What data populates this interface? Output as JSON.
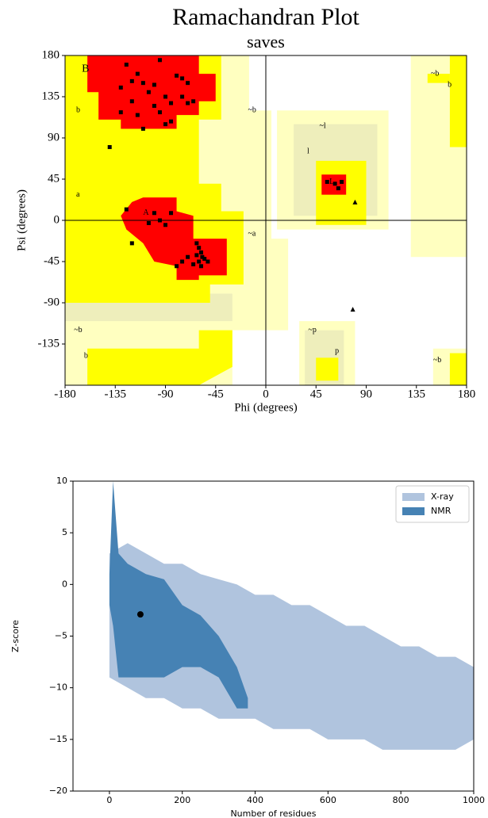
{
  "chart_data": [
    {
      "type": "scatter",
      "title": "Ramachandran Plot",
      "subtitle": "saves",
      "x_label": "Phi (degrees)",
      "y_label": "Psi (degrees)",
      "xlim": [
        -180,
        180
      ],
      "ylim": [
        -180,
        180
      ],
      "xticks": [
        -180,
        -135,
        -90,
        -45,
        0,
        45,
        90,
        135,
        180
      ],
      "yticks": [
        -135,
        -90,
        -45,
        0,
        45,
        90,
        135,
        180
      ],
      "zero_lines": true,
      "annotations": [
        "B",
        "b",
        "A",
        "a",
        "L",
        "l",
        "~b",
        "~a",
        "~l",
        "p",
        "~p",
        "~b",
        "b",
        "b",
        "~b",
        "~b"
      ],
      "series": [
        {
          "marker": "square",
          "color": "#000000",
          "x": [
            -125,
            -95,
            -115,
            -120,
            -110,
            -100,
            -80,
            -75,
            -130,
            -105,
            -90,
            -85,
            -120,
            -75,
            -70,
            -65,
            -100,
            -95,
            -115,
            -130,
            -85,
            -90,
            -110,
            -140,
            -70,
            -125,
            -100,
            -95,
            -90,
            -85,
            -105,
            -120,
            -62,
            -60,
            -58,
            -62,
            -57,
            -60,
            -55,
            -65,
            -58,
            -52,
            -70,
            -80,
            -75,
            55,
            62,
            68,
            65
          ],
          "y": [
            170,
            175,
            160,
            152,
            150,
            148,
            158,
            155,
            145,
            140,
            135,
            128,
            130,
            135,
            128,
            130,
            125,
            118,
            115,
            118,
            108,
            105,
            100,
            80,
            150,
            12,
            8,
            0,
            -5,
            8,
            -3,
            -25,
            -25,
            -30,
            -35,
            -38,
            -40,
            -45,
            -42,
            -48,
            -50,
            -45,
            -40,
            -50,
            -45,
            42,
            40,
            42,
            35
          ]
        },
        {
          "marker": "triangle",
          "color": "#000000",
          "x": [
            78,
            80
          ],
          "y": [
            -97,
            20
          ]
        }
      ]
    },
    {
      "type": "scatter",
      "x_label": "Number of residues",
      "y_label": "Z-score",
      "xlim": [
        -100,
        1000
      ],
      "ylim": [
        -20,
        10
      ],
      "xticks": [
        0,
        200,
        400,
        600,
        800,
        1000
      ],
      "yticks": [
        {
          "value": -20,
          "label": "−20"
        },
        {
          "value": -15,
          "label": "−15"
        },
        {
          "value": -10,
          "label": "−10"
        },
        {
          "value": -5,
          "label": "−5"
        },
        0,
        5,
        10
      ],
      "legend": "upper right",
      "series": [
        {
          "name": "X-ray",
          "color": "#b0c4de",
          "x": [
            0,
            50,
            100,
            150,
            200,
            250,
            300,
            350,
            400,
            450,
            500,
            550,
            600,
            650,
            700,
            750,
            800,
            850,
            900,
            950,
            1000
          ],
          "upper": [
            3,
            4,
            3,
            2,
            2,
            1,
            0.5,
            0,
            -1,
            -1,
            -2,
            -2,
            -3,
            -4,
            -4,
            -5,
            -6,
            -6,
            -7,
            -7,
            -8
          ],
          "lower": [
            -9,
            -10,
            -11,
            -11,
            -12,
            -12,
            -13,
            -13,
            -13,
            -14,
            -14,
            -14,
            -15,
            -15,
            -15,
            -16,
            -16,
            -16,
            -16,
            -16,
            -15
          ]
        },
        {
          "name": "NMR",
          "color": "#4682b4",
          "x": [
            0,
            10,
            25,
            50,
            100,
            150,
            200,
            250,
            300,
            350,
            380
          ],
          "upper": [
            1,
            10,
            3,
            2,
            1,
            0.5,
            -2,
            -3,
            -5,
            -8,
            -11
          ],
          "lower": [
            -2,
            -4,
            -9,
            -9,
            -9,
            -9,
            -8,
            -8,
            -9,
            -12,
            -12
          ]
        },
        {
          "marker": "circle",
          "color": "#000000",
          "x": [
            85
          ],
          "y": [
            -2.9
          ]
        }
      ]
    }
  ]
}
